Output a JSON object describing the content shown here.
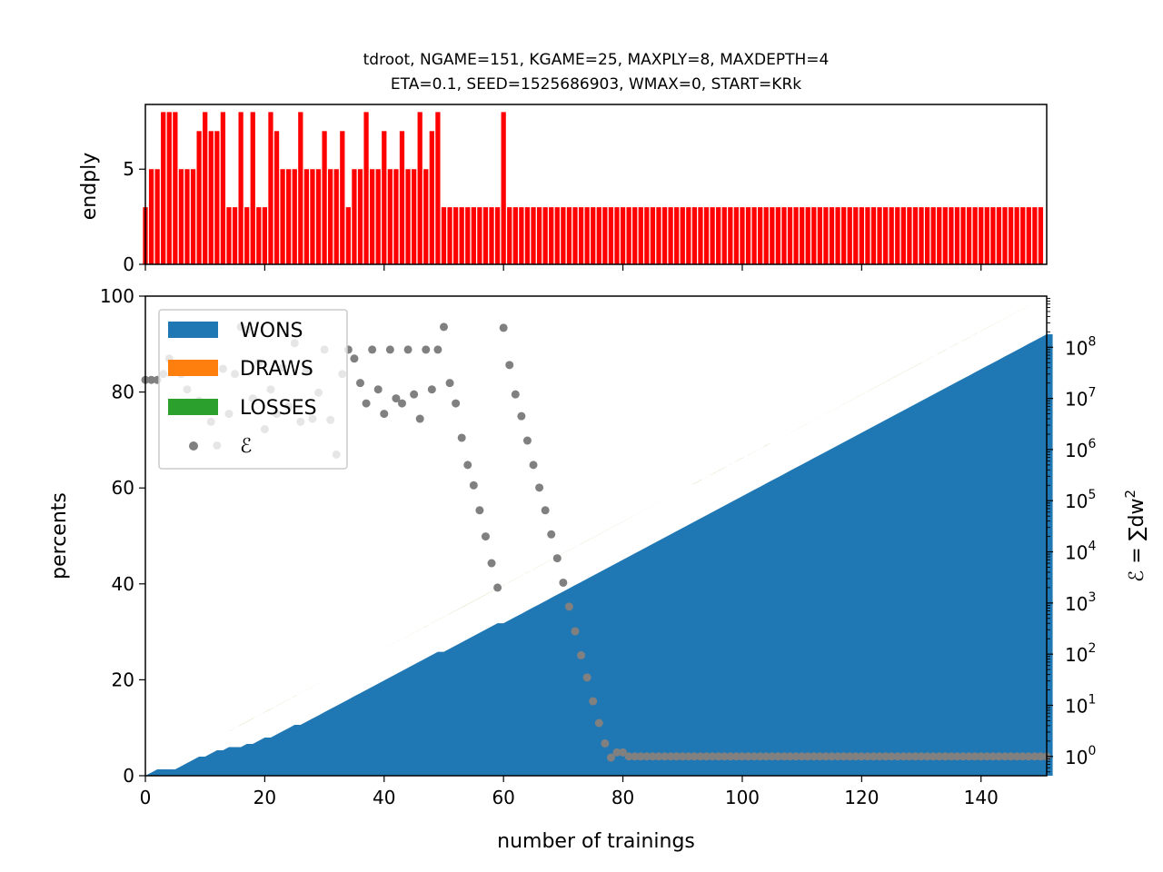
{
  "title": {
    "line1": "tdroot, NGAME=151, KGAME=25, MAXPLY=8, MAXDEPTH=4",
    "line2": "ETA=0.1, SEED=1525686903, WMAX=0, START=KRk"
  },
  "colors": {
    "wons": "#1f77b4",
    "draws": "#ff7f0e",
    "losses": "#2ca02c",
    "error": "#808080",
    "endply": "#ff0000"
  },
  "chart_data": [
    {
      "type": "bar",
      "ylabel": "endply",
      "xlim": [
        0,
        151
      ],
      "ylim": [
        0,
        8.4
      ],
      "yticks": [
        "0",
        "5"
      ],
      "x": [
        0,
        1,
        2,
        3,
        4,
        5,
        6,
        7,
        8,
        9,
        10,
        11,
        12,
        13,
        14,
        15,
        16,
        17,
        18,
        19,
        20,
        21,
        22,
        23,
        24,
        25,
        26,
        27,
        28,
        29,
        30,
        31,
        32,
        33,
        34,
        35,
        36,
        37,
        38,
        39,
        40,
        41,
        42,
        43,
        44,
        45,
        46,
        47,
        48,
        49,
        50,
        51,
        52,
        53,
        54,
        55,
        56,
        57,
        58,
        59,
        60,
        61,
        62,
        63,
        64,
        65,
        66,
        67,
        68,
        69,
        70,
        71,
        72,
        73,
        74,
        75,
        76,
        77,
        78,
        79,
        80,
        81,
        82,
        83,
        84,
        85,
        86,
        87,
        88,
        89,
        90,
        91,
        92,
        93,
        94,
        95,
        96,
        97,
        98,
        99,
        100,
        101,
        102,
        103,
        104,
        105,
        106,
        107,
        108,
        109,
        110,
        111,
        112,
        113,
        114,
        115,
        116,
        117,
        118,
        119,
        120,
        121,
        122,
        123,
        124,
        125,
        126,
        127,
        128,
        129,
        130,
        131,
        132,
        133,
        134,
        135,
        136,
        137,
        138,
        139,
        140,
        141,
        142,
        143,
        144,
        145,
        146,
        147,
        148,
        149,
        150
      ],
      "values": [
        3,
        5,
        5,
        8,
        8,
        8,
        5,
        5,
        5,
        7,
        8,
        7,
        7,
        8,
        3,
        3,
        8,
        3,
        8,
        3,
        3,
        8,
        7,
        5,
        5,
        5,
        8,
        5,
        5,
        5,
        7,
        5,
        5,
        7,
        3,
        5,
        5,
        8,
        5,
        5,
        7,
        5,
        5,
        7,
        5,
        5,
        8,
        5,
        7,
        8,
        3,
        3,
        3,
        3,
        3,
        3,
        3,
        3,
        3,
        3,
        8,
        3,
        3,
        3,
        3,
        3,
        3,
        3,
        3,
        3,
        3,
        3,
        3,
        3,
        3,
        3,
        3,
        3,
        3,
        3,
        3,
        3,
        3,
        3,
        3,
        3,
        3,
        3,
        3,
        3,
        3,
        3,
        3,
        3,
        3,
        3,
        3,
        3,
        3,
        3,
        3,
        3,
        3,
        3,
        3,
        3,
        3,
        3,
        3,
        3,
        3,
        3,
        3,
        3,
        3,
        3,
        3,
        3,
        3,
        3,
        3,
        3,
        3,
        3,
        3,
        3,
        3,
        3,
        3,
        3,
        3,
        3,
        3,
        3,
        3,
        3,
        3,
        3,
        3,
        3,
        3,
        3,
        3,
        3,
        3,
        3,
        3,
        3,
        3,
        3,
        3
      ]
    },
    {
      "type": "area",
      "xlabel": "number of trainings",
      "ylabel": "percents",
      "y2label_prefix": "ℰ = ∑dw",
      "y2label_sup": "2",
      "xlim": [
        0,
        151
      ],
      "ylim": [
        0,
        100
      ],
      "y2scale": "log",
      "y2lim": [
        0.42,
        1000000000
      ],
      "xticks": [
        "0",
        "20",
        "40",
        "60",
        "80",
        "100",
        "120",
        "140"
      ],
      "yticks": [
        "0",
        "20",
        "40",
        "60",
        "80",
        "100"
      ],
      "y2ticks": [
        {
          "base": "10",
          "exp": "0"
        },
        {
          "base": "10",
          "exp": "1"
        },
        {
          "base": "10",
          "exp": "2"
        },
        {
          "base": "10",
          "exp": "3"
        },
        {
          "base": "10",
          "exp": "4"
        },
        {
          "base": "10",
          "exp": "5"
        },
        {
          "base": "10",
          "exp": "6"
        },
        {
          "base": "10",
          "exp": "7"
        },
        {
          "base": "10",
          "exp": "8"
        }
      ],
      "legend": {
        "position": "upper left",
        "entries": [
          "WONS",
          "DRAWS",
          "LOSSES",
          "ℰ"
        ]
      },
      "series": [
        {
          "name": "WONS",
          "values": [
            0,
            0.66,
            1.32,
            1.32,
            1.32,
            1.32,
            1.99,
            2.65,
            3.31,
            3.97,
            3.97,
            4.64,
            5.3,
            5.3,
            5.96,
            5.96,
            5.96,
            6.62,
            6.62,
            7.28,
            7.95,
            7.95,
            8.61,
            9.27,
            9.93,
            10.6,
            10.6,
            11.26,
            11.92,
            12.58,
            13.25,
            13.91,
            14.57,
            15.23,
            15.89,
            16.56,
            17.22,
            17.88,
            18.54,
            19.21,
            19.87,
            20.53,
            21.19,
            21.85,
            22.52,
            23.18,
            23.84,
            24.5,
            25.17,
            25.83,
            25.83,
            26.49,
            27.15,
            27.81,
            28.48,
            29.14,
            29.8,
            30.46,
            31.13,
            31.79,
            31.79,
            32.45,
            33.11,
            33.77,
            34.44,
            35.1,
            35.76,
            36.42,
            37.09,
            37.75,
            38.41,
            39.07,
            39.74,
            40.4,
            41.06,
            41.72,
            42.38,
            43.05,
            43.71,
            44.37,
            45.03,
            45.7,
            46.36,
            47.02,
            47.68,
            48.34,
            49.01,
            49.67,
            50.33,
            50.99,
            51.66,
            52.32,
            52.98,
            53.64,
            54.3,
            54.97,
            55.63,
            56.29,
            56.95,
            57.62,
            58.28,
            58.94,
            59.6,
            60.26,
            60.93,
            61.59,
            62.25,
            62.91,
            63.58,
            64.24,
            64.9,
            65.56,
            66.23,
            66.89,
            67.55,
            68.21,
            68.87,
            69.54,
            70.2,
            70.86,
            71.52,
            72.19,
            72.85,
            73.51,
            74.17,
            74.83,
            75.5,
            76.16,
            76.82,
            77.48,
            78.15,
            78.81,
            79.47,
            80.13,
            80.79,
            81.46,
            82.12,
            82.78,
            83.44,
            84.11,
            84.77,
            85.43,
            86.09,
            86.75,
            87.42,
            88.08,
            88.74,
            89.4,
            90.07,
            90.73,
            91.39,
            92.05,
            92.05
          ]
        },
        {
          "name": "DRAWS",
          "values": [
            0,
            0,
            0,
            0.66,
            1.32,
            1.99,
            1.99,
            1.99,
            1.99,
            1.99,
            2.65,
            2.65,
            2.65,
            3.31,
            3.31,
            3.97,
            4.64,
            4.64,
            5.3,
            5.3,
            5.3,
            5.96,
            5.96,
            5.96,
            5.96,
            5.96,
            6.62,
            6.62,
            6.62,
            6.62,
            6.62,
            6.62,
            6.62,
            6.62,
            6.62,
            6.62,
            6.62,
            6.62,
            6.62,
            6.62,
            6.62,
            6.62,
            6.62,
            6.62,
            6.62,
            6.62,
            6.62,
            6.62,
            6.62,
            6.62,
            7.28,
            7.28,
            7.28,
            7.28,
            7.28,
            7.28,
            7.28,
            7.28,
            7.28,
            7.28,
            7.95,
            7.95,
            7.95,
            7.95,
            7.95,
            7.95,
            7.95,
            7.95,
            7.95,
            7.95,
            7.95,
            7.95,
            7.95,
            7.95,
            7.95,
            7.95,
            7.95,
            7.95,
            7.95,
            7.95,
            7.95,
            7.95,
            7.95,
            7.95,
            7.95,
            7.95,
            7.95,
            7.95,
            7.95,
            7.95,
            7.95,
            7.95,
            7.95,
            7.95,
            7.95,
            7.95,
            7.95,
            7.95,
            7.95,
            7.95,
            7.95,
            7.95,
            7.95,
            7.95,
            7.95,
            7.95,
            7.95,
            7.95,
            7.95,
            7.95,
            7.95,
            7.95,
            7.95,
            7.95,
            7.95,
            7.95,
            7.95,
            7.95,
            7.95,
            7.95,
            7.95,
            7.95,
            7.95,
            7.95,
            7.95,
            7.95,
            7.95,
            7.95,
            7.95,
            7.95,
            7.95,
            7.95,
            7.95,
            7.95,
            7.95,
            7.95,
            7.95,
            7.95,
            7.95,
            7.95,
            7.95,
            7.95,
            7.95,
            7.95,
            7.95,
            7.95,
            7.95,
            7.95,
            7.95,
            7.95,
            7.95
          ]
        },
        {
          "name": "LOSSES",
          "values": [
            0,
            0,
            0,
            0,
            0,
            0,
            0,
            0,
            0,
            0,
            0,
            0,
            0,
            0,
            0,
            0,
            0,
            0,
            0,
            0,
            0,
            0,
            0,
            0,
            0,
            0,
            0,
            0,
            0,
            0,
            0,
            0,
            0,
            0,
            0,
            0,
            0,
            0,
            0,
            0,
            0,
            0,
            0,
            0,
            0,
            0,
            0,
            0,
            0,
            0,
            0,
            0,
            0,
            0,
            0,
            0,
            0,
            0,
            0,
            0,
            0,
            0,
            0,
            0,
            0,
            0,
            0,
            0,
            0,
            0,
            0,
            0,
            0,
            0,
            0,
            0,
            0,
            0,
            0,
            0,
            0,
            0,
            0,
            0,
            0,
            0,
            0,
            0,
            0,
            0,
            0,
            0,
            0,
            0,
            0,
            0,
            0,
            0,
            0,
            0,
            0,
            0,
            0,
            0,
            0,
            0,
            0,
            0,
            0,
            0,
            0,
            0,
            0,
            0,
            0,
            0,
            0,
            0,
            0,
            0,
            0,
            0,
            0,
            0,
            0,
            0,
            0,
            0,
            0,
            0,
            0,
            0,
            0,
            0,
            0,
            0,
            0,
            0,
            0,
            0,
            0,
            0,
            0,
            0,
            0,
            0,
            0,
            0,
            0,
            0,
            0
          ]
        },
        {
          "name": "ℰ",
          "axis": "right",
          "values": [
            23000000,
            23000000,
            23000000,
            30000000,
            60000000,
            40000000,
            30000000,
            15000000,
            6000000,
            9000000,
            40000000,
            3500000,
            1200000,
            38000000,
            5000000,
            30000000,
            250000000,
            220000000,
            10000000,
            50000000,
            2500000,
            15000000,
            5000000,
            40000000,
            7000000,
            120000000,
            3500000,
            35000000,
            4000000,
            13000000,
            90000000,
            3800000,
            800000,
            30000000,
            90000000,
            60000000,
            20000000,
            8000000,
            90000000,
            15000000,
            5000000,
            90000000,
            10000000,
            8000000,
            90000000,
            12000000,
            4000000,
            90000000,
            15000000,
            90000000,
            250000000,
            20000000,
            8000000,
            1700000,
            500000,
            200000,
            65000,
            20000,
            6000,
            2000,
            240000000,
            45000000,
            12000000,
            4500000,
            1500000,
            500000,
            180000,
            65000,
            22000,
            7500,
            2500,
            850,
            280,
            95,
            35,
            12,
            4.5,
            1.8,
            0.95,
            1.2,
            1.2,
            1,
            1,
            1,
            1,
            1,
            1,
            1,
            1,
            1,
            1,
            1,
            1,
            1,
            1,
            1,
            1,
            1,
            1,
            1,
            1,
            1,
            1,
            1,
            1,
            1,
            1,
            1,
            1,
            1,
            1,
            1,
            1,
            1,
            1,
            1,
            1,
            1,
            1,
            1,
            1,
            1,
            1,
            1,
            1,
            1,
            1,
            1,
            1,
            1,
            1,
            1,
            1,
            1,
            1,
            1,
            1,
            1,
            1,
            1,
            1,
            1,
            1,
            1,
            1,
            1,
            1,
            1,
            1,
            1,
            1,
            1
          ]
        }
      ]
    }
  ]
}
